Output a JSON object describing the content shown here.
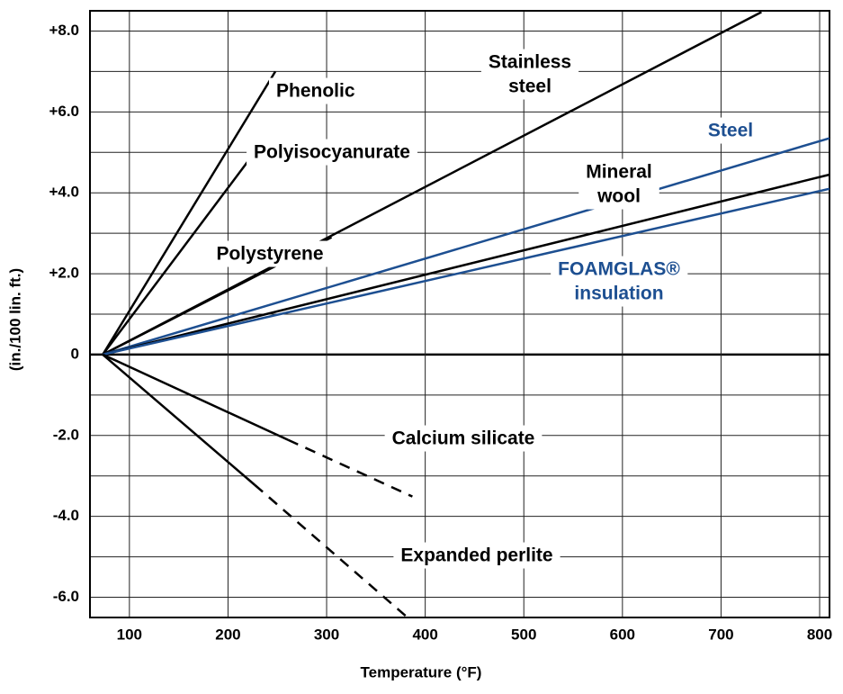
{
  "chart_data": {
    "type": "line",
    "x_label": "Temperature (°F)",
    "y_label": "(in./100 lin. ft.)",
    "xlim": [
      60,
      810
    ],
    "ylim": [
      -6.5,
      8.5
    ],
    "xticks": [
      100,
      200,
      300,
      400,
      500,
      600,
      700,
      800
    ],
    "yticks": [
      {
        "value": 8,
        "label": "+8.0"
      },
      {
        "value": 6,
        "label": "+6.0"
      },
      {
        "value": 4,
        "label": "+4.0"
      },
      {
        "value": 2,
        "label": "+2.0"
      },
      0,
      {
        "value": -2,
        "label": "-2.0"
      },
      {
        "value": -4,
        "label": "-4.0"
      },
      {
        "value": -6,
        "label": "-6.0"
      }
    ],
    "minor_yticks": [
      7,
      5,
      3,
      1,
      -1,
      -3,
      -5
    ],
    "grid": true,
    "series": [
      {
        "name": [
          "Phenolic"
        ],
        "color": "#000000",
        "x": [
          73,
          248
        ],
        "values": [
          0,
          7.0
        ]
      },
      {
        "name": [
          "Polyisocyanurate"
        ],
        "color": "#000000",
        "x": [
          73,
          227
        ],
        "values": [
          0,
          5.0
        ]
      },
      {
        "name": [
          "Polystyrene"
        ],
        "color": "#000000",
        "x": [
          73,
          305
        ],
        "values": [
          0,
          2.9
        ]
      },
      {
        "name": [
          "Stainless",
          "steel"
        ],
        "color": "#000000",
        "x": [
          73,
          741
        ],
        "values": [
          0,
          8.47
        ]
      },
      {
        "name": [
          "Steel"
        ],
        "color": "#1d4f91",
        "x": [
          73,
          810
        ],
        "values": [
          0,
          5.35
        ]
      },
      {
        "name": [
          "Mineral",
          "wool"
        ],
        "color": "#000000",
        "x": [
          73,
          810
        ],
        "values": [
          0,
          4.45
        ]
      },
      {
        "name": [
          "FOAMGLAS®",
          "insulation"
        ],
        "color": "#1d4f91",
        "x": [
          73,
          810
        ],
        "values": [
          0,
          4.1
        ]
      },
      {
        "name": [
          "Calcium silicate"
        ],
        "color": "#000000",
        "x": [
          73,
          261,
          387
        ],
        "values": [
          0,
          -2.11,
          -3.51
        ],
        "dashed": [
          false,
          true
        ]
      },
      {
        "name": [
          "Expanded perlite"
        ],
        "color": "#000000",
        "x": [
          73,
          227,
          382
        ],
        "values": [
          0,
          -3.22,
          -6.5
        ],
        "dashed": [
          false,
          true
        ]
      }
    ]
  }
}
